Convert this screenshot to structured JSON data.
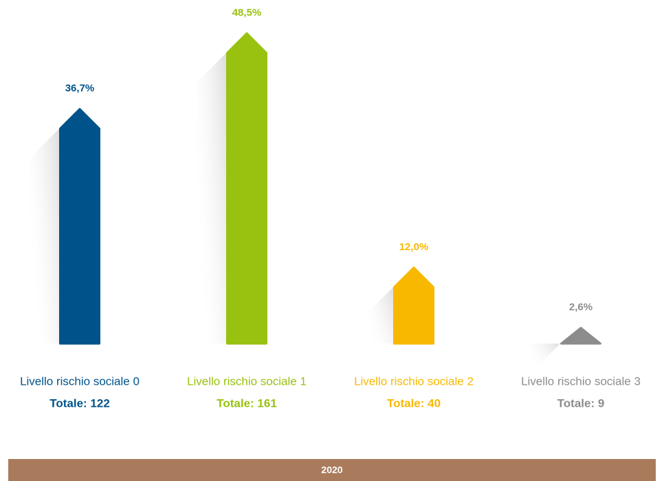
{
  "chart_data": {
    "type": "bar",
    "categories": [
      "Livello rischio sociale 0",
      "Livello rischio sociale 1",
      "Livello rischio sociale 2",
      "Livello rischio sociale 3"
    ],
    "values": [
      36.7,
      48.5,
      12.0,
      2.6
    ],
    "value_labels": [
      "36,7%",
      "48,5%",
      "12,0%",
      "2,6%"
    ],
    "totals": [
      "Totale: 122",
      "Totale: 161",
      "Totale: 40",
      "Totale: 9"
    ],
    "colors": [
      "#00538a",
      "#98c20f",
      "#f8b800",
      "#8c8c8c"
    ],
    "ylim": [
      0,
      50
    ],
    "footer": "2020"
  }
}
